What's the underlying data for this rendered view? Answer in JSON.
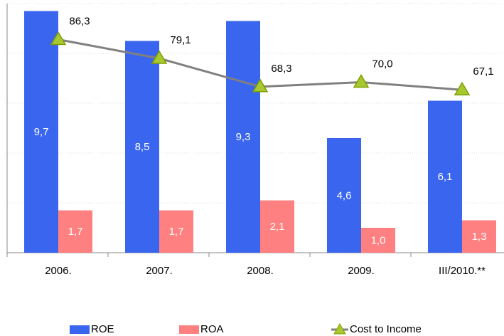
{
  "chart_data": {
    "type": "bar",
    "categories": [
      "2006.",
      "2007.",
      "2008.",
      "2009.",
      "III/2010.**"
    ],
    "series": [
      {
        "name": "ROE",
        "color": "#3a66ef",
        "values": [
          9.7,
          8.5,
          9.3,
          4.6,
          6.1
        ],
        "value_labels": [
          "9,7",
          "8,5",
          "9,3",
          "4,6",
          "6,1"
        ]
      },
      {
        "name": "ROA",
        "color": "#ff8080",
        "values": [
          1.7,
          1.7,
          2.1,
          1.0,
          1.3
        ],
        "value_labels": [
          "1,7",
          "1,7",
          "2,1",
          "1,0",
          "1,3"
        ]
      },
      {
        "name": "Cost to Income",
        "type": "line",
        "axis": "y2",
        "color": "#808080",
        "marker_color": "#a8c832",
        "values": [
          86.3,
          79.1,
          68.3,
          70.0,
          67.1
        ],
        "value_labels": [
          "86,3",
          "79,1",
          "68,3",
          "70,0",
          "67,1"
        ]
      }
    ],
    "ylim": [
      0,
      10
    ],
    "yticks": [
      0,
      2,
      4,
      6,
      8,
      10
    ],
    "y2lim": [
      5,
      100
    ],
    "grid": true,
    "legend": "bottom"
  }
}
